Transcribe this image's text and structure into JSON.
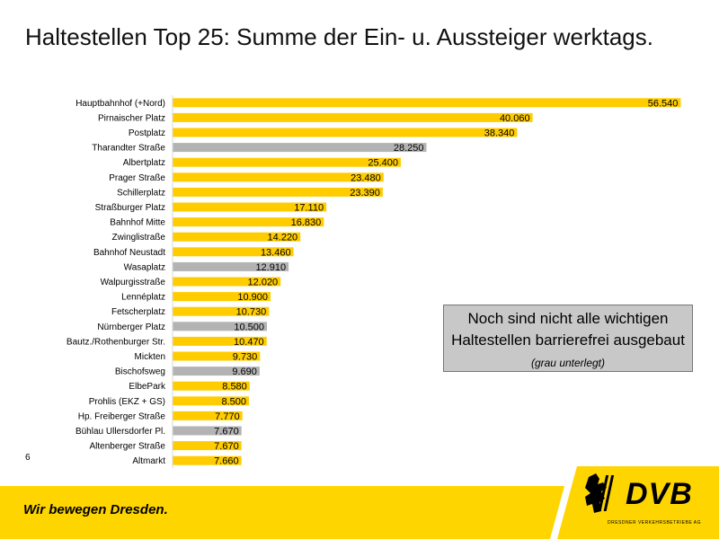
{
  "title": "Haltestellen Top 25: Summe der Ein- u. Aussteiger werktags.",
  "page_number": "6",
  "note": {
    "main": "Noch sind nicht alle wichtigen Haltestellen barrierefrei ausgebaut",
    "small": "(grau unterlegt)"
  },
  "footer": {
    "slogan": "Wir bewegen Dresden.",
    "logo": "DVB",
    "logo_sub": "DRESDNER VERKEHRSBETRIEBE AG"
  },
  "colors": {
    "barrier_free": "#ffcc00",
    "not_barrier_free": "#b3b3b3",
    "footer": "#ffd500"
  },
  "chart_data": {
    "type": "bar",
    "orientation": "horizontal",
    "xlim": [
      0,
      60000
    ],
    "grid": false,
    "categories": [
      "Hauptbahnhof (+Nord)",
      "Pirnaischer Platz",
      "Postplatz",
      "Tharandter Straße",
      "Albertplatz",
      "Prager Straße",
      "Schillerplatz",
      "Straßburger Platz",
      "Bahnhof Mitte",
      "Zwinglistraße",
      "Bahnhof Neustadt",
      "Wasaplatz",
      "Walpurgisstraße",
      "Lennéplatz",
      "Fetscherplatz",
      "Nürnberger Platz",
      "Bautz./Rothenburger Str.",
      "Mickten",
      "Bischofsweg",
      "ElbePark",
      "Prohlis (EKZ + GS)",
      "Hp. Freiberger Straße",
      "Bühlau Ullersdorfer Pl.",
      "Altenberger Straße",
      "Altmarkt"
    ],
    "values": [
      56540,
      40060,
      38340,
      28250,
      25400,
      23480,
      23390,
      17110,
      16830,
      14220,
      13460,
      12910,
      12020,
      10900,
      10730,
      10500,
      10470,
      9730,
      9690,
      8580,
      8500,
      7770,
      7670,
      7670,
      7660
    ],
    "value_labels": [
      "56.540",
      "40.060",
      "38.340",
      "28.250",
      "25.400",
      "23.480",
      "23.390",
      "17.110",
      "16.830",
      "14.220",
      "13.460",
      "12.910",
      "12.020",
      "10.900",
      "10.730",
      "10.500",
      "10.470",
      "9.730",
      "9.690",
      "8.580",
      "8.500",
      "7.770",
      "7.670",
      "7.670",
      "7.660"
    ],
    "barrier_free": [
      true,
      true,
      true,
      false,
      true,
      true,
      true,
      true,
      true,
      true,
      true,
      false,
      true,
      true,
      true,
      false,
      true,
      true,
      false,
      true,
      true,
      true,
      false,
      true,
      true
    ]
  }
}
